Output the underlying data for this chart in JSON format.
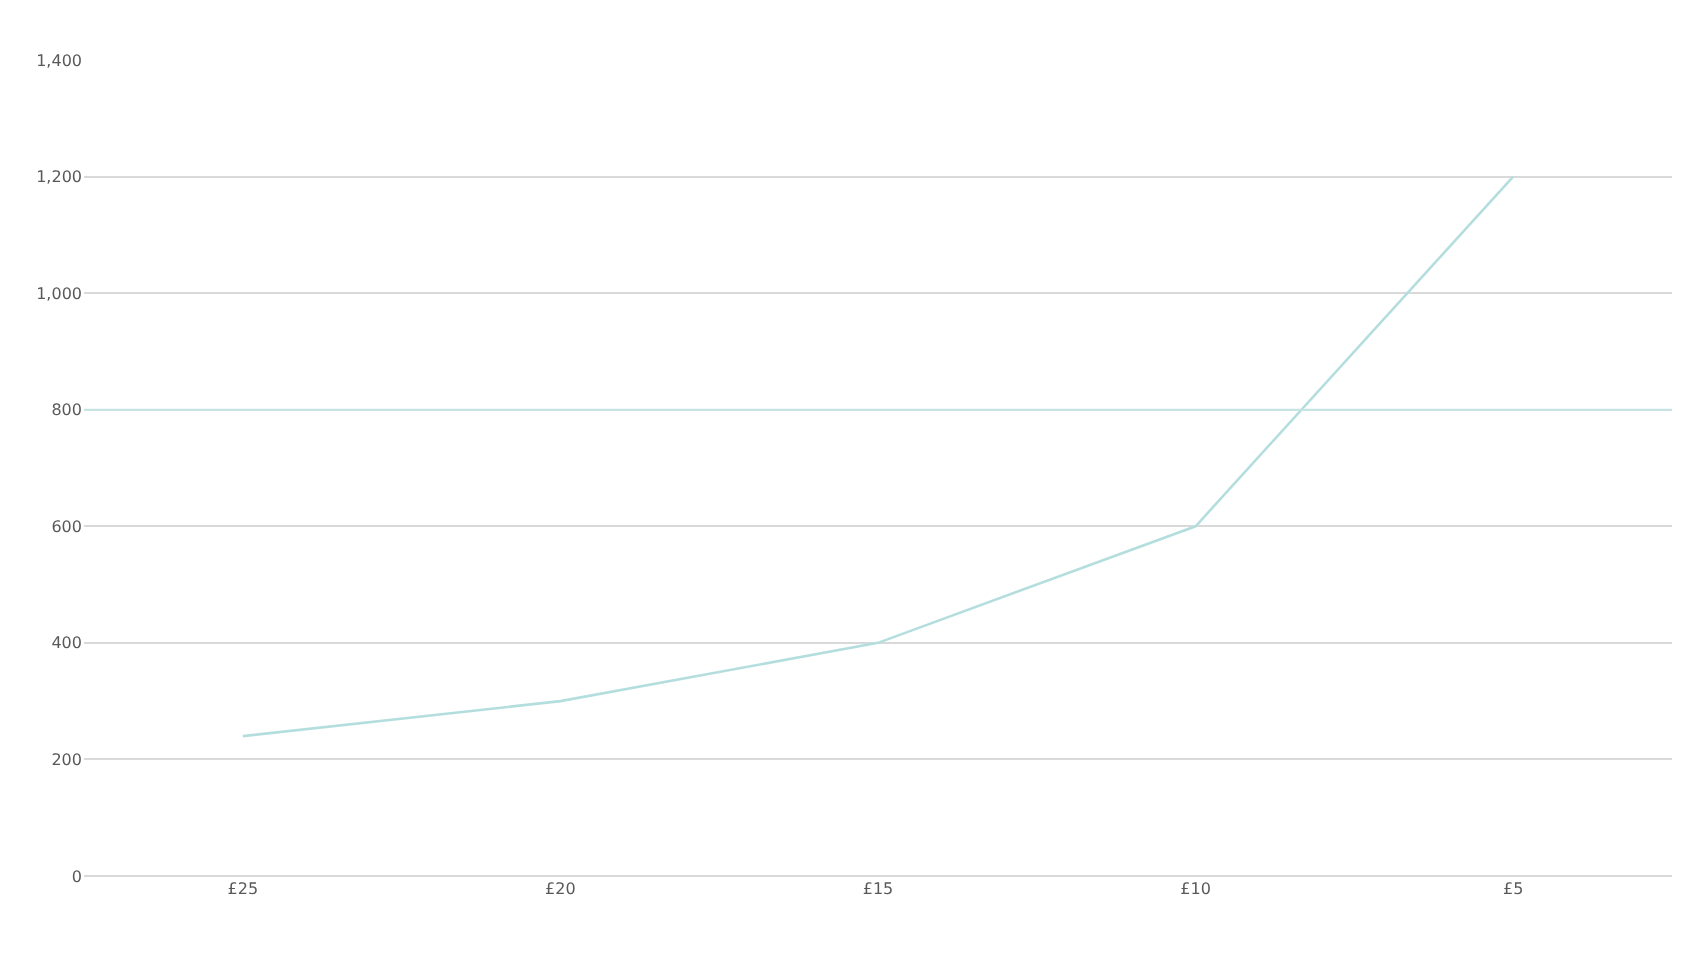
{
  "chart_data": {
    "type": "line",
    "categories": [
      "£25",
      "£20",
      "£15",
      "£10",
      "£5"
    ],
    "series": [
      {
        "color": "#b4dede",
        "values": [
          240,
          300,
          400,
          600,
          1200
        ]
      }
    ],
    "ylim": [
      0,
      1400
    ],
    "yticks": [
      {
        "value": 0,
        "label": "0"
      },
      {
        "value": 200,
        "label": "200"
      },
      {
        "value": 400,
        "label": "400"
      },
      {
        "value": 600,
        "label": "600"
      },
      {
        "value": 800,
        "label": "800"
      },
      {
        "value": 1000,
        "label": "1,000"
      },
      {
        "value": 1200,
        "label": "1,200"
      },
      {
        "value": 1400,
        "label": "1,400"
      }
    ],
    "ref_lines": [
      {
        "axis": "y",
        "value": 800,
        "color": "#c4e4e4"
      }
    ],
    "grid": "y",
    "marker": "none",
    "line_style": "solid"
  }
}
